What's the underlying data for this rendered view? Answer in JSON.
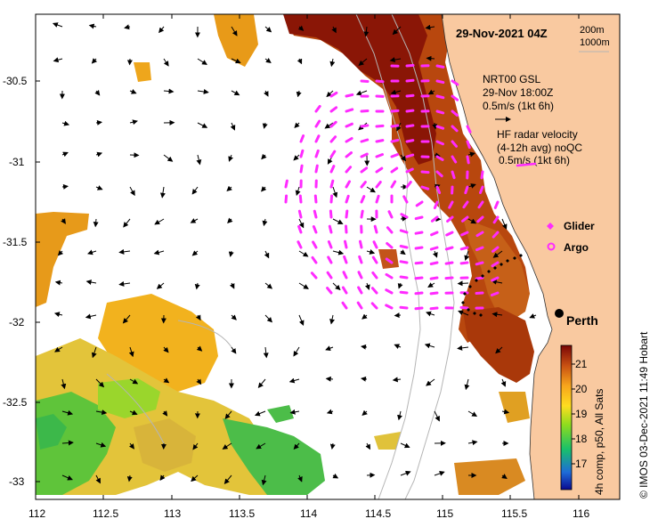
{
  "header": {
    "datetime": "29-Nov-2021 04Z",
    "depth_200": "200m",
    "depth_1000": "1000m"
  },
  "legend": {
    "nrt_title": "NRT00 GSL",
    "nrt_time": "29-Nov 18:00Z",
    "nrt_scale": "0.5m/s (1kt 6h)",
    "hf_title": "HF radar velocity",
    "hf_avg": "(4-12h avg) noQC",
    "hf_scale": "0.5m/s (1kt 6h)",
    "glider": "Glider",
    "argo": "Argo",
    "city": "Perth"
  },
  "colorbar": {
    "ticks": [
      "21",
      "20",
      "19",
      "18",
      "17"
    ],
    "label": "4h comp, p50, All Sats"
  },
  "credit": "© IMOS 03-Dec-2021 11:49 Hobart",
  "axes": {
    "x_ticks": [
      "112",
      "112.5",
      "113",
      "113.5",
      "114",
      "114.5",
      "115",
      "115.5",
      "116"
    ],
    "y_ticks": [
      "-30.5",
      "-31",
      "-31.5",
      "-32",
      "-32.5",
      "-33"
    ],
    "xlim": [
      112,
      116.3
    ],
    "ylim": [
      -33.1,
      -30.1
    ]
  },
  "colors": {
    "land": "#f9c9a0",
    "hf_radar": "#ff2bff",
    "glider": "#ff2bff",
    "argo": "#ff2bff"
  }
}
